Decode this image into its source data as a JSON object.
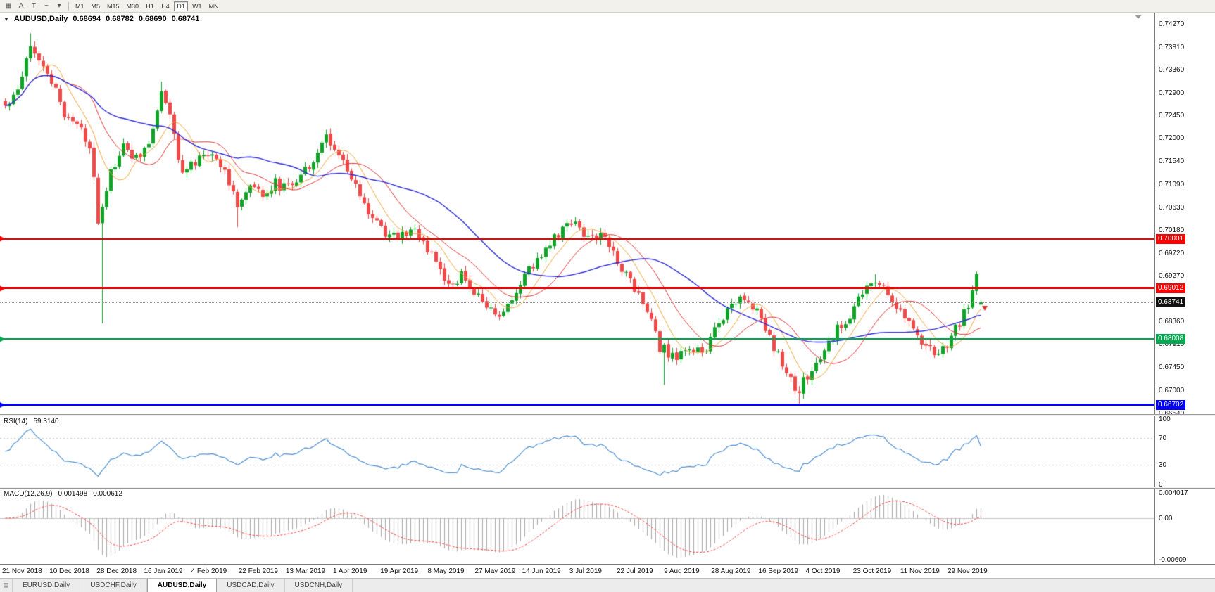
{
  "toolbar": {
    "left_icons": [
      {
        "name": "chart-grid-icon",
        "glyph": "▦"
      },
      {
        "name": "text-tool-icon",
        "glyph": "A"
      },
      {
        "name": "label-tool-icon",
        "glyph": "T"
      },
      {
        "name": "zigzag-tool-icon",
        "glyph": "~"
      },
      {
        "name": "tools-dropdown-icon",
        "glyph": "▾"
      }
    ],
    "timeframes": [
      "M1",
      "M5",
      "M15",
      "M30",
      "H1",
      "H4",
      "D1",
      "W1",
      "MN"
    ],
    "active_timeframe": "D1"
  },
  "chart": {
    "dropdown_glyph": "▼",
    "symbol_label": "AUDUSD,Daily",
    "ohlc": {
      "open": "0.68694",
      "high": "0.68782",
      "low": "0.68690",
      "close": "0.68741"
    },
    "current_price": "0.68741",
    "current_price_badge_color": "#111111",
    "price_axis_labels": [
      "0.74270",
      "0.73810",
      "0.73360",
      "0.72900",
      "0.72450",
      "0.72000",
      "0.71540",
      "0.71090",
      "0.70630",
      "0.70180",
      "0.69720",
      "0.69270",
      "0.68360",
      "0.67910",
      "0.67450",
      "0.67000",
      "0.66540"
    ],
    "levels": [
      {
        "value": 0.70001,
        "label": "0.70001",
        "color": "#ff0000",
        "thickness": 2
      },
      {
        "value": 0.69012,
        "label": "0.69012",
        "color": "#ff0000",
        "thickness": 3
      },
      {
        "value": 0.68008,
        "label": "0.68008",
        "color": "#00a94f",
        "thickness": 2
      },
      {
        "value": 0.66702,
        "label": "0.66702",
        "color": "#0000ff",
        "thickness": 3
      }
    ],
    "price_min": 0.6652,
    "price_max": 0.7449
  },
  "rsi": {
    "label": "RSI(14)",
    "value": "59.3140",
    "color": "#4f8fd0",
    "axis_labels": [
      "100",
      "70",
      "30",
      "0"
    ],
    "level_lines": [
      70,
      30
    ]
  },
  "macd": {
    "label": "MACD(12,26,9)",
    "value_main": "0.001498",
    "value_signal": "0.000612",
    "hist_color": "#a8a8a8",
    "signal_color": "#ff3b3b",
    "axis_top": "0.004017",
    "axis_zero": "0.00",
    "axis_bottom": "-0.00609"
  },
  "time_axis": [
    "21 Nov 2018",
    "10 Dec 2018",
    "28 Dec 2018",
    "16 Jan 2019",
    "4 Feb 2019",
    "22 Feb 2019",
    "13 Mar 2019",
    "1 Apr 2019",
    "19 Apr 2019",
    "8 May 2019",
    "27 May 2019",
    "14 Jun 2019",
    "3 Jul 2019",
    "22 Jul 2019",
    "9 Aug 2019",
    "28 Aug 2019",
    "16 Sep 2019",
    "4 Oct 2019",
    "23 Oct 2019",
    "11 Nov 2019",
    "29 Nov 2019"
  ],
  "tab_bar": {
    "list_button_glyph": "▤"
  },
  "tabs": [
    "EURUSD,Daily",
    "USDCHF,Daily",
    "AUDUSD,Daily",
    "USDCAD,Daily",
    "USDCNH,Daily"
  ],
  "active_tab": "AUDUSD,Daily",
  "chart_data": {
    "type": "candlestick+indicators",
    "symbol": "AUDUSD",
    "timeframe": "Daily",
    "num_candles": 232,
    "close_path_anchors": [
      [
        0,
        0.7262
      ],
      [
        3,
        0.73
      ],
      [
        6,
        0.739
      ],
      [
        8,
        0.736
      ],
      [
        11,
        0.731
      ],
      [
        14,
        0.725
      ],
      [
        17,
        0.7228
      ],
      [
        20,
        0.718
      ],
      [
        21,
        0.713
      ],
      [
        22,
        0.704
      ],
      [
        23,
        0.7068
      ],
      [
        25,
        0.713
      ],
      [
        28,
        0.718
      ],
      [
        31,
        0.716
      ],
      [
        34,
        0.7185
      ],
      [
        37,
        0.7295
      ],
      [
        39,
        0.724
      ],
      [
        42,
        0.713
      ],
      [
        45,
        0.715
      ],
      [
        48,
        0.717
      ],
      [
        51,
        0.715
      ],
      [
        54,
        0.71
      ],
      [
        55,
        0.706
      ],
      [
        58,
        0.71
      ],
      [
        61,
        0.709
      ],
      [
        64,
        0.711
      ],
      [
        67,
        0.71
      ],
      [
        70,
        0.713
      ],
      [
        73,
        0.716
      ],
      [
        76,
        0.72
      ],
      [
        78,
        0.7185
      ],
      [
        81,
        0.713
      ],
      [
        84,
        0.7085
      ],
      [
        87,
        0.704
      ],
      [
        90,
        0.701
      ],
      [
        93,
        0.7
      ],
      [
        96,
        0.702
      ],
      [
        99,
        0.6995
      ],
      [
        102,
        0.695
      ],
      [
        105,
        0.6905
      ],
      [
        108,
        0.6925
      ],
      [
        111,
        0.6895
      ],
      [
        114,
        0.6865
      ],
      [
        117,
        0.684
      ],
      [
        120,
        0.688
      ],
      [
        123,
        0.6925
      ],
      [
        126,
        0.696
      ],
      [
        129,
        0.699
      ],
      [
        132,
        0.702
      ],
      [
        135,
        0.7035
      ],
      [
        138,
        0.7
      ],
      [
        141,
        0.701
      ],
      [
        144,
        0.6975
      ],
      [
        147,
        0.693
      ],
      [
        150,
        0.689
      ],
      [
        153,
        0.6845
      ],
      [
        155,
        0.6772
      ],
      [
        156,
        0.6782
      ],
      [
        159,
        0.6758
      ],
      [
        162,
        0.6785
      ],
      [
        165,
        0.677
      ],
      [
        168,
        0.6815
      ],
      [
        171,
        0.686
      ],
      [
        174,
        0.6885
      ],
      [
        177,
        0.687
      ],
      [
        180,
        0.682
      ],
      [
        183,
        0.677
      ],
      [
        186,
        0.6715
      ],
      [
        187,
        0.6688
      ],
      [
        188,
        0.6702
      ],
      [
        191,
        0.674
      ],
      [
        194,
        0.6775
      ],
      [
        197,
        0.682
      ],
      [
        200,
        0.685
      ],
      [
        203,
        0.689
      ],
      [
        206,
        0.692
      ],
      [
        209,
        0.689
      ],
      [
        212,
        0.686
      ],
      [
        215,
        0.682
      ],
      [
        218,
        0.679
      ],
      [
        221,
        0.677
      ],
      [
        224,
        0.6805
      ],
      [
        227,
        0.685
      ],
      [
        230,
        0.692
      ],
      [
        231,
        0.68741
      ]
    ],
    "wick_overrides": [
      {
        "i": 6,
        "high": 0.7408
      },
      {
        "i": 23,
        "low": 0.6832
      },
      {
        "i": 37,
        "high": 0.7312
      },
      {
        "i": 55,
        "low": 0.7023
      },
      {
        "i": 156,
        "low": 0.671
      },
      {
        "i": 188,
        "low": 0.66702
      },
      {
        "i": 206,
        "high": 0.693
      },
      {
        "i": 230,
        "high": 0.6935
      },
      {
        "i": 231,
        "high": 0.68782,
        "low": 0.6869
      }
    ],
    "last_ohlc": [
      0.68694,
      0.68782,
      0.6869,
      0.68741
    ],
    "ma_periods": {
      "orange": 8,
      "red": 16,
      "blue": 34
    },
    "colors": {
      "bull": "#10a328",
      "bear": "#ef4949",
      "ma_orange": "#f2a23a",
      "ma_red": "#e03232",
      "ma_blue": "#2b2bd5"
    },
    "marker": {
      "type": "arrow-down",
      "color": "#e03030"
    }
  }
}
